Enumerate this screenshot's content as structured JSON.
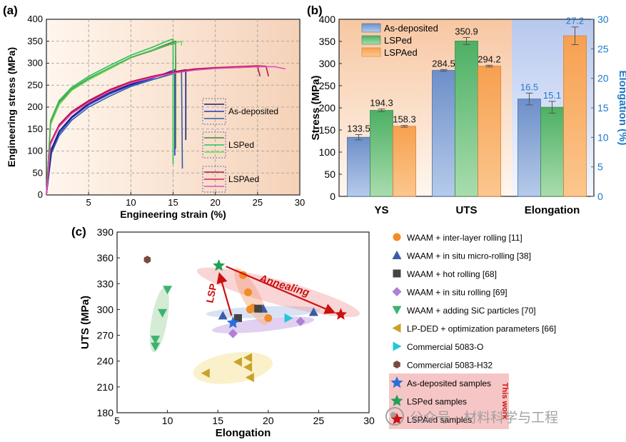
{
  "chart_data": [
    {
      "panel": "(a)",
      "type": "line",
      "xlabel": "Engineering strain (%)",
      "ylabel": "Engineering stress (MPa)",
      "xlim": [
        0,
        30
      ],
      "ylim": [
        0,
        400
      ],
      "xticks": [
        5,
        10,
        15,
        20,
        25,
        30
      ],
      "yticks": [
        0,
        50,
        100,
        150,
        200,
        250,
        300,
        350,
        400
      ],
      "grid": true,
      "legend_position": "bottom-right",
      "colors": {
        "as_deposited": "#1f2fbf",
        "lsped": "#22c55e",
        "lspaed": "#d02060"
      },
      "series": [
        {
          "name": "As-deposited",
          "color": "#2233c8",
          "points": [
            [
              0,
              0
            ],
            [
              0.6,
              100
            ],
            [
              1.5,
              140
            ],
            [
              3,
              175
            ],
            [
              5,
              205
            ],
            [
              7.5,
              230
            ],
            [
              10,
              250
            ],
            [
              12.5,
              265
            ],
            [
              14.5,
              280
            ],
            [
              15.2,
              285
            ],
            [
              15.2,
              90
            ]
          ]
        },
        {
          "name": "As-deposited",
          "color": "#2a5fa8",
          "points": [
            [
              0,
              0
            ],
            [
              0.6,
              95
            ],
            [
              1.5,
              135
            ],
            [
              3,
              170
            ],
            [
              5,
              200
            ],
            [
              7.5,
              225
            ],
            [
              10,
              247
            ],
            [
              12.5,
              262
            ],
            [
              15,
              276
            ],
            [
              16,
              283
            ],
            [
              16.1,
              60
            ]
          ]
        },
        {
          "name": "As-deposited",
          "color": "#1a1a7a",
          "points": [
            [
              0,
              0
            ],
            [
              0.6,
              105
            ],
            [
              1.5,
              145
            ],
            [
              3,
              178
            ],
            [
              5,
              208
            ],
            [
              7.5,
              233
            ],
            [
              10,
              252
            ],
            [
              12.5,
              268
            ],
            [
              15,
              280
            ],
            [
              16.5,
              285
            ],
            [
              16.5,
              125
            ]
          ]
        },
        {
          "name": "LSPed",
          "color": "#22c55e",
          "points": [
            [
              0,
              0
            ],
            [
              0.5,
              170
            ],
            [
              1.5,
              215
            ],
            [
              3,
              245
            ],
            [
              5,
              270
            ],
            [
              7.5,
              295
            ],
            [
              10,
              318
            ],
            [
              12.5,
              336
            ],
            [
              14.5,
              352
            ],
            [
              15,
              355
            ],
            [
              15,
              70
            ]
          ]
        },
        {
          "name": "LSPed",
          "color": "#3a8a3a",
          "points": [
            [
              0,
              0
            ],
            [
              0.5,
              165
            ],
            [
              1.5,
              210
            ],
            [
              3,
              240
            ],
            [
              5,
              265
            ],
            [
              7.5,
              290
            ],
            [
              10,
              313
            ],
            [
              12.5,
              330
            ],
            [
              14.5,
              345
            ],
            [
              15.3,
              350
            ],
            [
              15.3,
              105
            ]
          ]
        },
        {
          "name": "LSPed",
          "color": "#66dd55",
          "points": [
            [
              0,
              0
            ],
            [
              0.5,
              160
            ],
            [
              1.5,
              205
            ],
            [
              3,
              238
            ],
            [
              5,
              262
            ],
            [
              7.5,
              287
            ],
            [
              10,
              312
            ],
            [
              12.5,
              330
            ],
            [
              15,
              345
            ],
            [
              16,
              350
            ],
            [
              16,
              340
            ]
          ]
        },
        {
          "name": "LSPed",
          "color": "#55aa55",
          "points": [
            [
              0,
              0
            ],
            [
              0.5,
              168
            ],
            [
              1.5,
              212
            ],
            [
              3,
              242
            ],
            [
              5,
              266
            ],
            [
              7.5,
              290
            ],
            [
              10,
              313
            ],
            [
              12.5,
              328
            ],
            [
              14.5,
              342
            ],
            [
              15.3,
              345
            ],
            [
              15.3,
              318
            ]
          ]
        },
        {
          "name": "LSPAed",
          "color": "#cc1144",
          "points": [
            [
              0,
              0
            ],
            [
              0.5,
              120
            ],
            [
              1.5,
              160
            ],
            [
              3,
              190
            ],
            [
              5,
              215
            ],
            [
              7.5,
              240
            ],
            [
              10,
              258
            ],
            [
              12.5,
              270
            ],
            [
              15,
              280
            ],
            [
              17.5,
              287
            ],
            [
              20,
              290
            ],
            [
              22.5,
              292
            ],
            [
              25,
              294
            ],
            [
              26,
              293
            ],
            [
              26.3,
              270
            ]
          ]
        },
        {
          "name": "LSPAed",
          "color": "#aa1a55",
          "points": [
            [
              0,
              0
            ],
            [
              0.5,
              118
            ],
            [
              1.5,
              158
            ],
            [
              3,
              188
            ],
            [
              5,
              213
            ],
            [
              7.5,
              238
            ],
            [
              10,
              256
            ],
            [
              12.5,
              268
            ],
            [
              15,
              278
            ],
            [
              17.5,
              286
            ],
            [
              20,
              289
            ],
            [
              22.5,
              290
            ],
            [
              24,
              291
            ],
            [
              25,
              292
            ],
            [
              25.3,
              270
            ]
          ]
        },
        {
          "name": "LSPAed",
          "color": "#e050c0",
          "points": [
            [
              0,
              0
            ],
            [
              0.5,
              115
            ],
            [
              1.5,
              155
            ],
            [
              3,
              185
            ],
            [
              5,
              210
            ],
            [
              7.5,
              236
            ],
            [
              10,
              255
            ],
            [
              12.5,
              267
            ],
            [
              15,
              277
            ],
            [
              17.5,
              284
            ],
            [
              20,
              288
            ],
            [
              22.5,
              290
            ],
            [
              25,
              292
            ],
            [
              27,
              292
            ],
            [
              28.3,
              287
            ]
          ]
        }
      ],
      "legend": [
        {
          "label": "As-deposited",
          "colors": [
            "#1a1a7a",
            "#2233c8",
            "#2a5fa8"
          ]
        },
        {
          "label": "LSPed",
          "colors": [
            "#3a8a3a",
            "#22c55e",
            "#66dd55"
          ]
        },
        {
          "label": "LSPAed",
          "colors": [
            "#aa1a55",
            "#d02060",
            "#e050c0"
          ]
        }
      ]
    },
    {
      "panel": "(b)",
      "type": "bar",
      "categories": [
        "YS",
        "UTS",
        "Elongation"
      ],
      "ylabel": "Stress (MPa)",
      "ylabel_right": "Elongation (%)",
      "ylim": [
        0,
        400
      ],
      "ylim_right": [
        0,
        30
      ],
      "yticks": [
        0,
        50,
        100,
        150,
        200,
        250,
        300,
        350,
        400
      ],
      "yticks_right": [
        0,
        5,
        10,
        15,
        20,
        25,
        30
      ],
      "legend_position": "top-left",
      "series": [
        {
          "name": "As-deposited",
          "color": "#7b9fd4",
          "values": [
            133.5,
            284.5,
            16.5
          ],
          "errors": [
            6,
            2,
            1.0
          ]
        },
        {
          "name": "LSPed",
          "color": "#6cc27a",
          "values": [
            194.3,
            350.9,
            15.1
          ],
          "errors": [
            3,
            8,
            1.0
          ]
        },
        {
          "name": "LSPAed",
          "color": "#f7a050",
          "values": [
            158.3,
            294.2,
            27.2
          ],
          "errors": [
            2,
            2,
            1.5
          ]
        }
      ],
      "labels": [
        [
          "133.5",
          "194.3",
          "158.3"
        ],
        [
          "284.5",
          "350.9",
          "294.2"
        ],
        [
          "16.5",
          "15.1",
          "27.2"
        ]
      ],
      "label_colors": {
        "stress": "#111111",
        "elongation": "#2277cc"
      }
    },
    {
      "panel": "(c)",
      "type": "scatter",
      "xlabel": "Elongation",
      "ylabel": "UTS (MPa)",
      "xlim": [
        5,
        30
      ],
      "ylim": [
        180,
        390
      ],
      "xticks": [
        5,
        10,
        15,
        20,
        25,
        30
      ],
      "yticks": [
        180,
        210,
        240,
        270,
        300,
        330,
        360,
        390
      ],
      "legend_position": "right",
      "annotations": [
        {
          "text": "LSP",
          "color": "#cc1111"
        },
        {
          "text": "Annealing",
          "color": "#cc1111"
        },
        {
          "text": "This work",
          "color": "#cc1111"
        }
      ],
      "series": [
        {
          "name": "WAAM + inter-layer rolling [11]",
          "marker": "circle",
          "color": "#f28c28",
          "points": [
            [
              17.5,
              340
            ],
            [
              18,
              320
            ],
            [
              18.2,
              300
            ],
            [
              18.5,
              302
            ],
            [
              20,
              290
            ]
          ]
        },
        {
          "name": "WAAM + in situ micro-rolling [38]",
          "marker": "triangle-up",
          "color": "#3a5ba8",
          "points": [
            [
              15.5,
              293
            ],
            [
              19.5,
              301
            ],
            [
              24.5,
              297
            ]
          ]
        },
        {
          "name": "WAAM + hot rolling [68]",
          "marker": "square",
          "color": "#444444",
          "points": [
            [
              17,
              290
            ],
            [
              19,
              301
            ]
          ]
        },
        {
          "name": "WAAM + in situ rolling [69]",
          "marker": "diamond",
          "color": "#b07fd8",
          "points": [
            [
              16.5,
              272
            ],
            [
              23.2,
              286
            ]
          ]
        },
        {
          "name": "WAAM + adding SiC particles [70]",
          "marker": "triangle-down",
          "color": "#3cb371",
          "points": [
            [
              10,
              323
            ],
            [
              9.5,
              296
            ],
            [
              8.8,
              265
            ],
            [
              8.8,
              257
            ]
          ]
        },
        {
          "name": "LP-DED + optimization parameters [66]",
          "marker": "triangle-left",
          "color": "#c9a227",
          "points": [
            [
              13.8,
              226
            ],
            [
              17,
              239
            ],
            [
              18,
              244
            ],
            [
              18,
              233
            ],
            [
              18.2,
              221
            ]
          ]
        },
        {
          "name": "Commercial 5083-O",
          "marker": "triangle-right",
          "color": "#22c8d8",
          "points": [
            [
              22,
              290
            ]
          ]
        },
        {
          "name": "Commercial 5083-H32",
          "marker": "hexagon",
          "color": "#7a4a40",
          "points": [
            [
              8,
              358
            ]
          ]
        },
        {
          "name": "As-deposited samples",
          "marker": "star",
          "color": "#2a6fdb",
          "points": [
            [
              16.5,
              284.5
            ]
          ]
        },
        {
          "name": "LSPed samples",
          "marker": "star",
          "color": "#22a05a",
          "points": [
            [
              15.1,
              350.9
            ]
          ]
        },
        {
          "name": "LSPAed samples",
          "marker": "star",
          "color": "#cc1111",
          "points": [
            [
              27.2,
              294.2
            ]
          ]
        }
      ]
    }
  ],
  "watermark": {
    "text": "公众号 · 材料科学与工程"
  }
}
